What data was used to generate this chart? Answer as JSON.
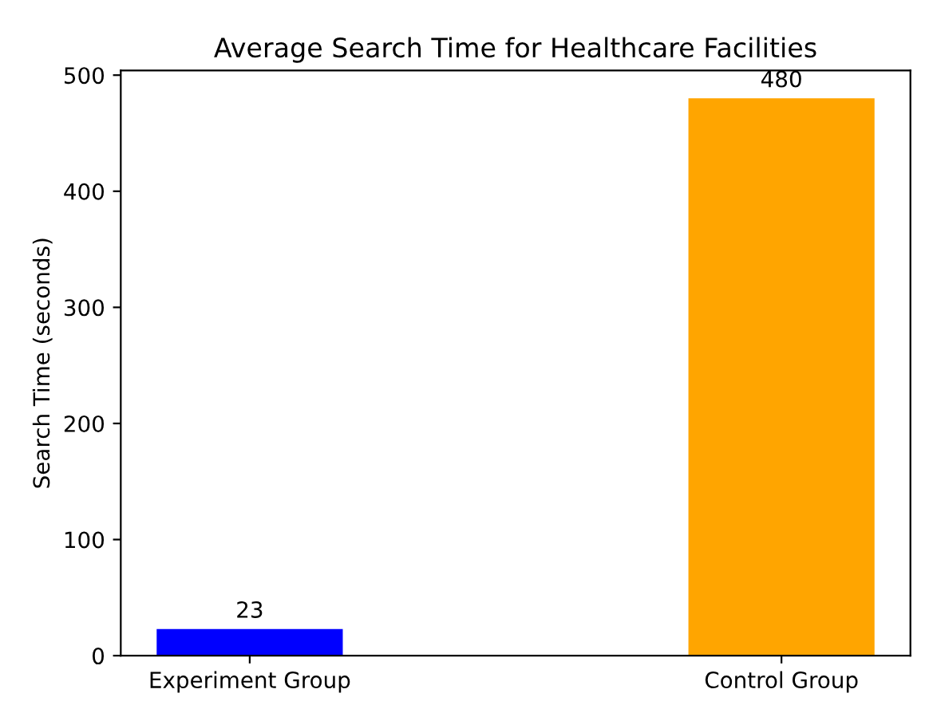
{
  "chart_data": {
    "type": "bar",
    "title": "Average Search Time for Healthcare Facilities",
    "ylabel": "Search Time (seconds)",
    "categories": [
      "Experiment Group",
      "Control Group"
    ],
    "values": [
      23,
      480
    ],
    "colors": [
      "#0000ff",
      "#ffa500"
    ],
    "ylim": [
      0,
      504
    ],
    "yticks": [
      0,
      100,
      200,
      300,
      400,
      500
    ],
    "data_labels": true,
    "grid": false
  }
}
